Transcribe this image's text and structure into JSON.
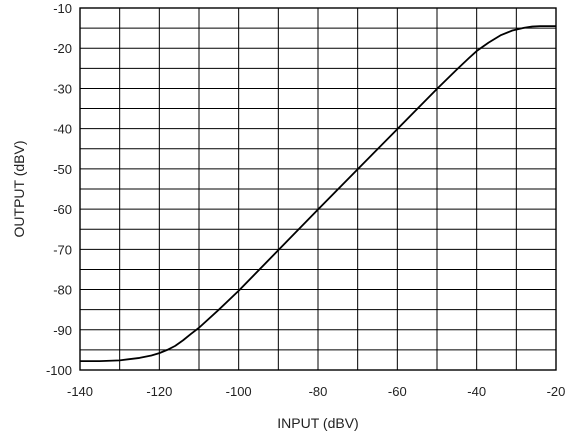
{
  "chart_data": {
    "type": "line",
    "title": "",
    "xlabel": "INPUT (dBV)",
    "ylabel": "OUTPUT  (dBV)",
    "xlim": [
      -140,
      -20
    ],
    "ylim": [
      -100,
      -10
    ],
    "x_ticks": [
      -140,
      -120,
      -100,
      -80,
      -60,
      -40,
      -20
    ],
    "y_ticks": [
      -10,
      -20,
      -30,
      -40,
      -50,
      -60,
      -70,
      -80,
      -90,
      -100
    ],
    "grid": true,
    "minor_grid_x_step": 10,
    "minor_grid_y_step": 5,
    "series": [
      {
        "x": [
          -140,
          -135,
          -130,
          -125,
          -122,
          -120,
          -118,
          -116,
          -114,
          -112,
          -110,
          -105,
          -100,
          -90,
          -80,
          -70,
          -60,
          -50,
          -45,
          -42,
          -40,
          -37,
          -34,
          -31,
          -28,
          -26,
          -24,
          -22,
          -20
        ],
        "y": [
          -97.8,
          -97.8,
          -97.6,
          -97.0,
          -96.4,
          -95.8,
          -95.0,
          -94.0,
          -92.6,
          -91.0,
          -89.5,
          -85.0,
          -80.3,
          -70.2,
          -60.1,
          -50.1,
          -40.1,
          -30.1,
          -25.3,
          -22.5,
          -20.7,
          -18.6,
          -16.8,
          -15.6,
          -14.9,
          -14.6,
          -14.5,
          -14.5,
          -14.5
        ],
        "color": "#000000"
      }
    ]
  }
}
